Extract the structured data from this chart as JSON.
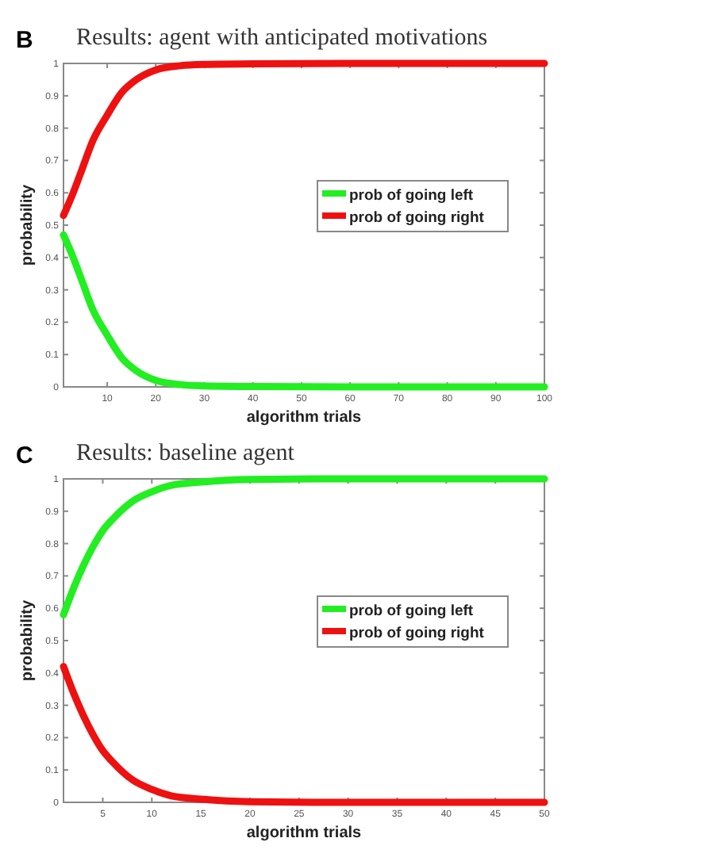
{
  "chart_data": [
    {
      "type": "line",
      "title": "Results: agent with anticipated motivations",
      "xlabel": "algorithm trials",
      "ylabel": "probability",
      "annotations": [
        "B"
      ],
      "x": [
        1,
        3,
        5,
        7,
        10,
        13,
        16,
        20,
        25,
        30,
        40,
        60,
        100
      ],
      "series": [
        {
          "name": "prob of going left",
          "color": "#22ee22",
          "values": [
            0.47,
            0.4,
            0.32,
            0.24,
            0.16,
            0.09,
            0.05,
            0.02,
            0.007,
            0.003,
            0.001,
            0,
            0
          ]
        },
        {
          "name": "prob of going right",
          "color": "#ee1111",
          "values": [
            0.53,
            0.6,
            0.68,
            0.76,
            0.84,
            0.91,
            0.95,
            0.98,
            0.993,
            0.997,
            0.999,
            1,
            1
          ]
        }
      ],
      "xlim": [
        1,
        100
      ],
      "xticks": [
        10,
        20,
        30,
        40,
        50,
        60,
        70,
        80,
        90,
        100
      ],
      "ylim": [
        0,
        1
      ],
      "yticks": [
        0,
        0.1,
        0.2,
        0.3,
        0.4,
        0.5,
        0.6,
        0.7,
        0.8,
        0.9,
        1
      ],
      "legend": "right",
      "grid": false,
      "marker": "none",
      "line_style": "solid"
    },
    {
      "type": "line",
      "title": "Results: baseline agent",
      "xlabel": "algorithm trials",
      "ylabel": "probability",
      "annotations": [
        "C"
      ],
      "x": [
        1,
        2,
        3,
        4,
        5,
        6,
        8,
        10,
        12,
        15,
        20,
        30,
        50
      ],
      "series": [
        {
          "name": "prob of going left",
          "color": "#22ee22",
          "values": [
            0.58,
            0.66,
            0.73,
            0.79,
            0.84,
            0.875,
            0.93,
            0.96,
            0.98,
            0.99,
            0.998,
            1,
            1
          ]
        },
        {
          "name": "prob of going right",
          "color": "#ee1111",
          "values": [
            0.42,
            0.34,
            0.27,
            0.21,
            0.16,
            0.125,
            0.07,
            0.04,
            0.02,
            0.01,
            0.002,
            0,
            0
          ]
        }
      ],
      "xlim": [
        1,
        50
      ],
      "xticks": [
        5,
        10,
        15,
        20,
        25,
        30,
        35,
        40,
        45,
        50
      ],
      "ylim": [
        0,
        1
      ],
      "yticks": [
        0,
        0.1,
        0.2,
        0.3,
        0.4,
        0.5,
        0.6,
        0.7,
        0.8,
        0.9,
        1
      ],
      "legend": "right",
      "grid": false,
      "marker": "none",
      "line_style": "solid"
    }
  ]
}
